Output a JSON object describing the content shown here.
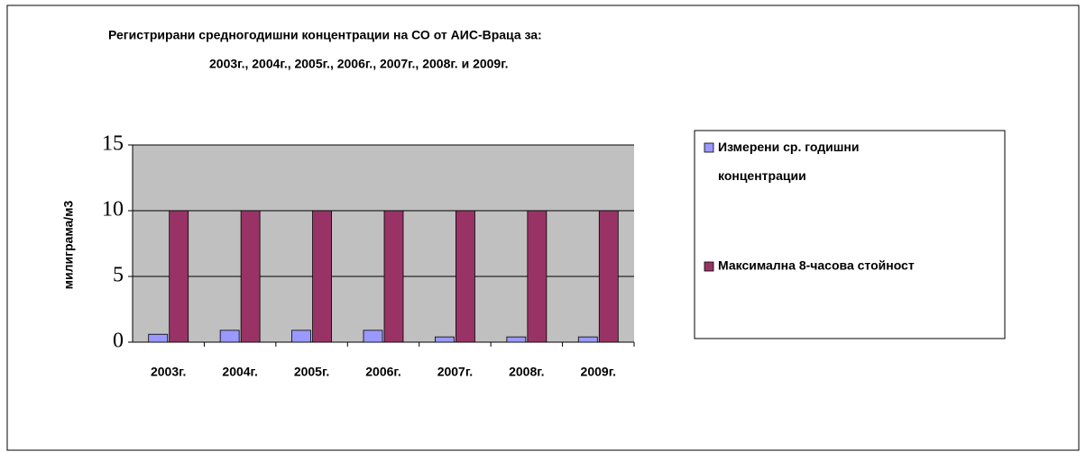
{
  "chart_data": {
    "type": "bar",
    "title": [
      "Регистрирани средногодишни концентрации на СО от АИС-Враца за:",
      "2003г., 2004г., 2005г., 2006г., 2007г., 2008г. и 2009г."
    ],
    "y_label": "милиграма/м3",
    "categories": [
      "2003г.",
      "2004г.",
      "2005г.",
      "2006г.",
      "2007г.",
      "2008г.",
      "2009г."
    ],
    "series": [
      {
        "name": "Измерени ср. годишни концентрации",
        "color": "#9999ff",
        "values": [
          0.6,
          0.9,
          0.9,
          0.9,
          0.4,
          0.4,
          0.4
        ]
      },
      {
        "name": "Максимална 8-часова стойност",
        "color": "#993366",
        "values": [
          10,
          10,
          10,
          10,
          10,
          10,
          10
        ]
      }
    ],
    "ylim": [
      0,
      15
    ],
    "yticks": [
      0,
      5,
      10,
      15
    ],
    "grid": true,
    "legend": "right"
  }
}
